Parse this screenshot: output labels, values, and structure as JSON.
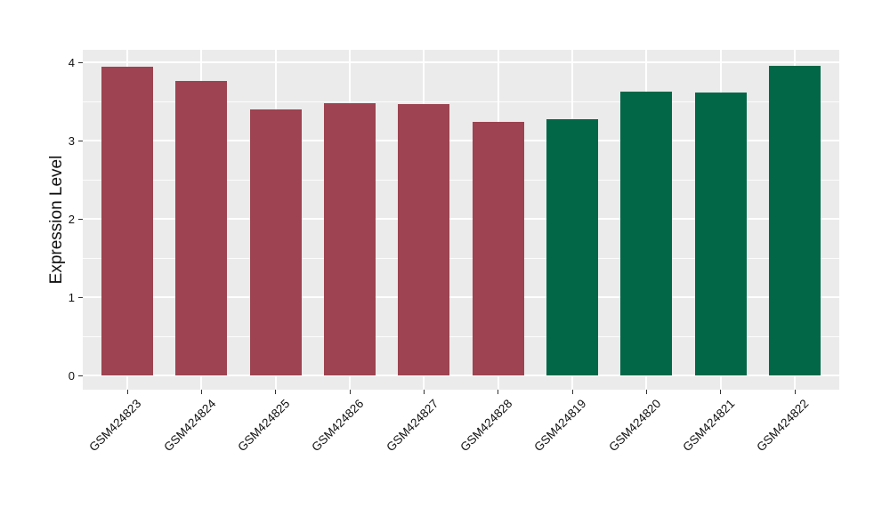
{
  "chart_data": {
    "type": "bar",
    "title": "",
    "xlabel": "",
    "ylabel": "Expression Level",
    "categories": [
      "GSM424823",
      "GSM424824",
      "GSM424825",
      "GSM424826",
      "GSM424827",
      "GSM424828",
      "GSM424819",
      "GSM424820",
      "GSM424821",
      "GSM424822"
    ],
    "values": [
      3.94,
      3.76,
      3.4,
      3.48,
      3.47,
      3.24,
      3.27,
      3.63,
      3.61,
      3.96
    ],
    "bar_colors": [
      "#9D4351",
      "#9D4351",
      "#9D4351",
      "#9D4351",
      "#9D4351",
      "#9D4351",
      "#016747",
      "#016747",
      "#016747",
      "#016747"
    ],
    "yticks": [
      0,
      1,
      2,
      3,
      4
    ],
    "ytick_labels": [
      "0",
      "1",
      "2",
      "3",
      "4"
    ],
    "yticks_minor": [
      0.5,
      1.5,
      2.5,
      3.5
    ],
    "ylim": [
      -0.18,
      4.16
    ],
    "bar_width_frac": 0.7,
    "grid": true,
    "legend": false
  },
  "style": {
    "panel_bg": "#EBEBEB",
    "grid_major_color": "#FFFFFF",
    "grid_minor_color": "#FFFFFF",
    "tick_color": "#333333",
    "text_color": "#111111"
  }
}
